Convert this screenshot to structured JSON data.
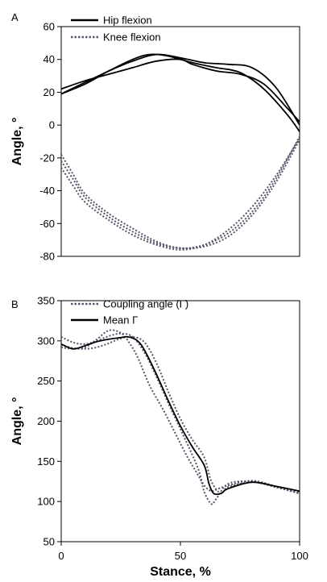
{
  "chart_data": [
    {
      "panel": "A",
      "type": "line",
      "xlabel": "",
      "ylabel": "Angle, °",
      "xlim": [
        0,
        100
      ],
      "ylim": [
        -80,
        60
      ],
      "yticks": [
        -80,
        -60,
        -40,
        -20,
        0,
        20,
        40,
        60
      ],
      "legend_position": "top-left",
      "series": [
        {
          "name": "Hip flexion",
          "style": "solid",
          "color": "#000000",
          "legend": true,
          "x": [
            0,
            10,
            20,
            30,
            37,
            45,
            55,
            65,
            75,
            85,
            95,
            100
          ],
          "y": [
            19,
            25,
            33,
            40,
            43,
            42,
            38,
            35,
            32,
            22,
            6,
            -4
          ]
        },
        {
          "name": "",
          "style": "solid",
          "color": "#000000",
          "x": [
            0,
            10,
            20,
            30,
            40,
            50,
            55,
            65,
            75,
            85,
            95,
            100
          ],
          "y": [
            22,
            27,
            31,
            35,
            39,
            40,
            37,
            33,
            31,
            25,
            10,
            2
          ]
        },
        {
          "name": "",
          "style": "solid",
          "color": "#000000",
          "x": [
            0,
            10,
            20,
            30,
            40,
            50,
            60,
            70,
            80,
            90,
            100
          ],
          "y": [
            19,
            26,
            33,
            39,
            43,
            41,
            38,
            37,
            35,
            23,
            0
          ]
        },
        {
          "name": "Knee flexion",
          "style": "dotted",
          "color": "#55556a",
          "legend": true,
          "x": [
            0,
            5,
            10,
            20,
            30,
            40,
            50,
            60,
            70,
            80,
            90,
            100
          ],
          "y": [
            -18,
            -30,
            -42,
            -54,
            -63,
            -71,
            -75,
            -73,
            -66,
            -53,
            -33,
            -7
          ]
        },
        {
          "name": "",
          "style": "dotted",
          "color": "#55556a",
          "x": [
            0,
            5,
            10,
            20,
            30,
            40,
            50,
            60,
            70,
            80,
            90,
            100
          ],
          "y": [
            -22,
            -33,
            -44,
            -56,
            -65,
            -72,
            -75,
            -74,
            -68,
            -55,
            -35,
            -9
          ]
        },
        {
          "name": "",
          "style": "dotted",
          "color": "#55556a",
          "x": [
            0,
            5,
            10,
            20,
            30,
            40,
            50,
            60,
            70,
            80,
            90,
            100
          ],
          "y": [
            -26,
            -37,
            -47,
            -58,
            -67,
            -73,
            -76,
            -73,
            -64,
            -50,
            -31,
            -8
          ]
        }
      ]
    },
    {
      "panel": "B",
      "type": "line",
      "xlabel": "Stance, %",
      "ylabel": "Angle, °",
      "xlim": [
        0,
        100
      ],
      "ylim": [
        50,
        350
      ],
      "xticks": [
        0,
        50,
        100
      ],
      "yticks": [
        50,
        100,
        150,
        200,
        250,
        300,
        350
      ],
      "legend_position": "top-left",
      "series": [
        {
          "name": "Coupling angle (Γ)",
          "style": "dotted",
          "color": "#55556a",
          "legend": true,
          "x": [
            0,
            5,
            10,
            15,
            20,
            25,
            30,
            35,
            40,
            45,
            50,
            55,
            58,
            60,
            63,
            65,
            70,
            80,
            90,
            100
          ],
          "y": [
            305,
            298,
            296,
            300,
            306,
            309,
            305,
            285,
            255,
            222,
            190,
            158,
            136,
            112,
            97,
            103,
            122,
            125,
            118,
            110
          ]
        },
        {
          "name": "",
          "style": "dotted",
          "color": "#55556a",
          "x": [
            0,
            5,
            10,
            15,
            20,
            25,
            28,
            32,
            37,
            43,
            48,
            53,
            57,
            60,
            63,
            66,
            70,
            80,
            90,
            100
          ],
          "y": [
            292,
            290,
            292,
            302,
            313,
            310,
            300,
            280,
            245,
            213,
            184,
            155,
            135,
            120,
            113,
            116,
            120,
            126,
            119,
            112
          ]
        },
        {
          "name": "",
          "style": "dotted",
          "color": "#55556a",
          "x": [
            0,
            5,
            10,
            15,
            20,
            25,
            30,
            35,
            40,
            45,
            50,
            55,
            60,
            63,
            67,
            70,
            80,
            90,
            100
          ],
          "y": [
            295,
            291,
            290,
            292,
            297,
            303,
            305,
            298,
            272,
            236,
            203,
            177,
            155,
            125,
            110,
            118,
            124,
            118,
            110
          ]
        },
        {
          "name": "Mean Γ",
          "style": "solid",
          "color": "#000000",
          "legend": true,
          "x": [
            0,
            5,
            10,
            15,
            20,
            25,
            28,
            32,
            35,
            40,
            45,
            50,
            55,
            60,
            62,
            64,
            67,
            70,
            80,
            90,
            100
          ],
          "y": [
            296,
            290,
            294,
            299,
            302,
            304,
            305,
            300,
            288,
            258,
            225,
            194,
            168,
            145,
            122,
            110,
            110,
            116,
            124,
            119,
            113
          ]
        }
      ]
    }
  ]
}
